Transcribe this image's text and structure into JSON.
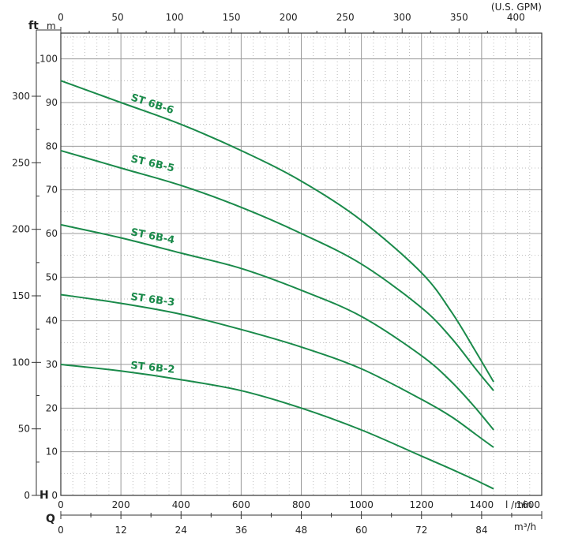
{
  "chart_data": {
    "type": "line",
    "axes": {
      "x_bottom": {
        "unit": "l /min",
        "ticks": [
          "0",
          "200",
          "400",
          "600",
          "800",
          "1000",
          "1200",
          "1400",
          "1600"
        ],
        "range": [
          0,
          1600
        ]
      },
      "x_top": {
        "unit": "(U.S. GPM)",
        "ticks": [
          "0",
          "50",
          "100",
          "150",
          "200",
          "250",
          "300",
          "350",
          "400"
        ],
        "range": [
          0,
          422.7
        ]
      },
      "x_q": {
        "unit": "m³/h",
        "letter": "Q",
        "ticks": [
          "0",
          "12",
          "24",
          "36",
          "48",
          "60",
          "72",
          "84"
        ],
        "range": [
          0,
          96
        ]
      },
      "y_m": {
        "unit": "m",
        "letter": "H",
        "ticks": [
          "0",
          "10",
          "20",
          "30",
          "40",
          "50",
          "60",
          "70",
          "80",
          "90",
          "100"
        ],
        "range": [
          0,
          100
        ]
      },
      "y_ft": {
        "unit": "ft",
        "ticks": [
          "0",
          "50",
          "100",
          "150",
          "200",
          "250",
          "300"
        ],
        "range": [
          0,
          328.1
        ]
      }
    },
    "grid": true,
    "series": [
      {
        "name": "ST 6B-6",
        "x": [
          0,
          200,
          400,
          600,
          800,
          1000,
          1200,
          1300,
          1380,
          1440
        ],
        "y": [
          95,
          90,
          85,
          79,
          72,
          63,
          51,
          42,
          33,
          26
        ]
      },
      {
        "name": "ST 6B-5",
        "x": [
          0,
          200,
          400,
          600,
          800,
          1000,
          1200,
          1300,
          1380,
          1440
        ],
        "y": [
          79,
          75,
          71,
          66,
          60,
          53,
          43,
          36,
          29,
          24
        ]
      },
      {
        "name": "ST 6B-4",
        "x": [
          0,
          200,
          400,
          600,
          800,
          1000,
          1200,
          1300,
          1380,
          1440
        ],
        "y": [
          62,
          59,
          55.5,
          52,
          47,
          41,
          32,
          26,
          20,
          15
        ]
      },
      {
        "name": "ST 6B-3",
        "x": [
          0,
          200,
          400,
          600,
          800,
          1000,
          1200,
          1300,
          1380,
          1440
        ],
        "y": [
          46,
          44,
          41.5,
          38,
          34,
          29,
          22,
          18,
          14,
          11
        ]
      },
      {
        "name": "ST 6B-2",
        "x": [
          0,
          200,
          400,
          600,
          800,
          1000,
          1200,
          1300,
          1380,
          1440
        ],
        "y": [
          30,
          28.5,
          26.5,
          24,
          20,
          15,
          9,
          6,
          3.5,
          1.5
        ]
      }
    ],
    "colors": {
      "curve": "#1a8a4a",
      "grid_major": "#999999",
      "grid_minor": "#bbbbbb",
      "frame": "#333333"
    }
  }
}
